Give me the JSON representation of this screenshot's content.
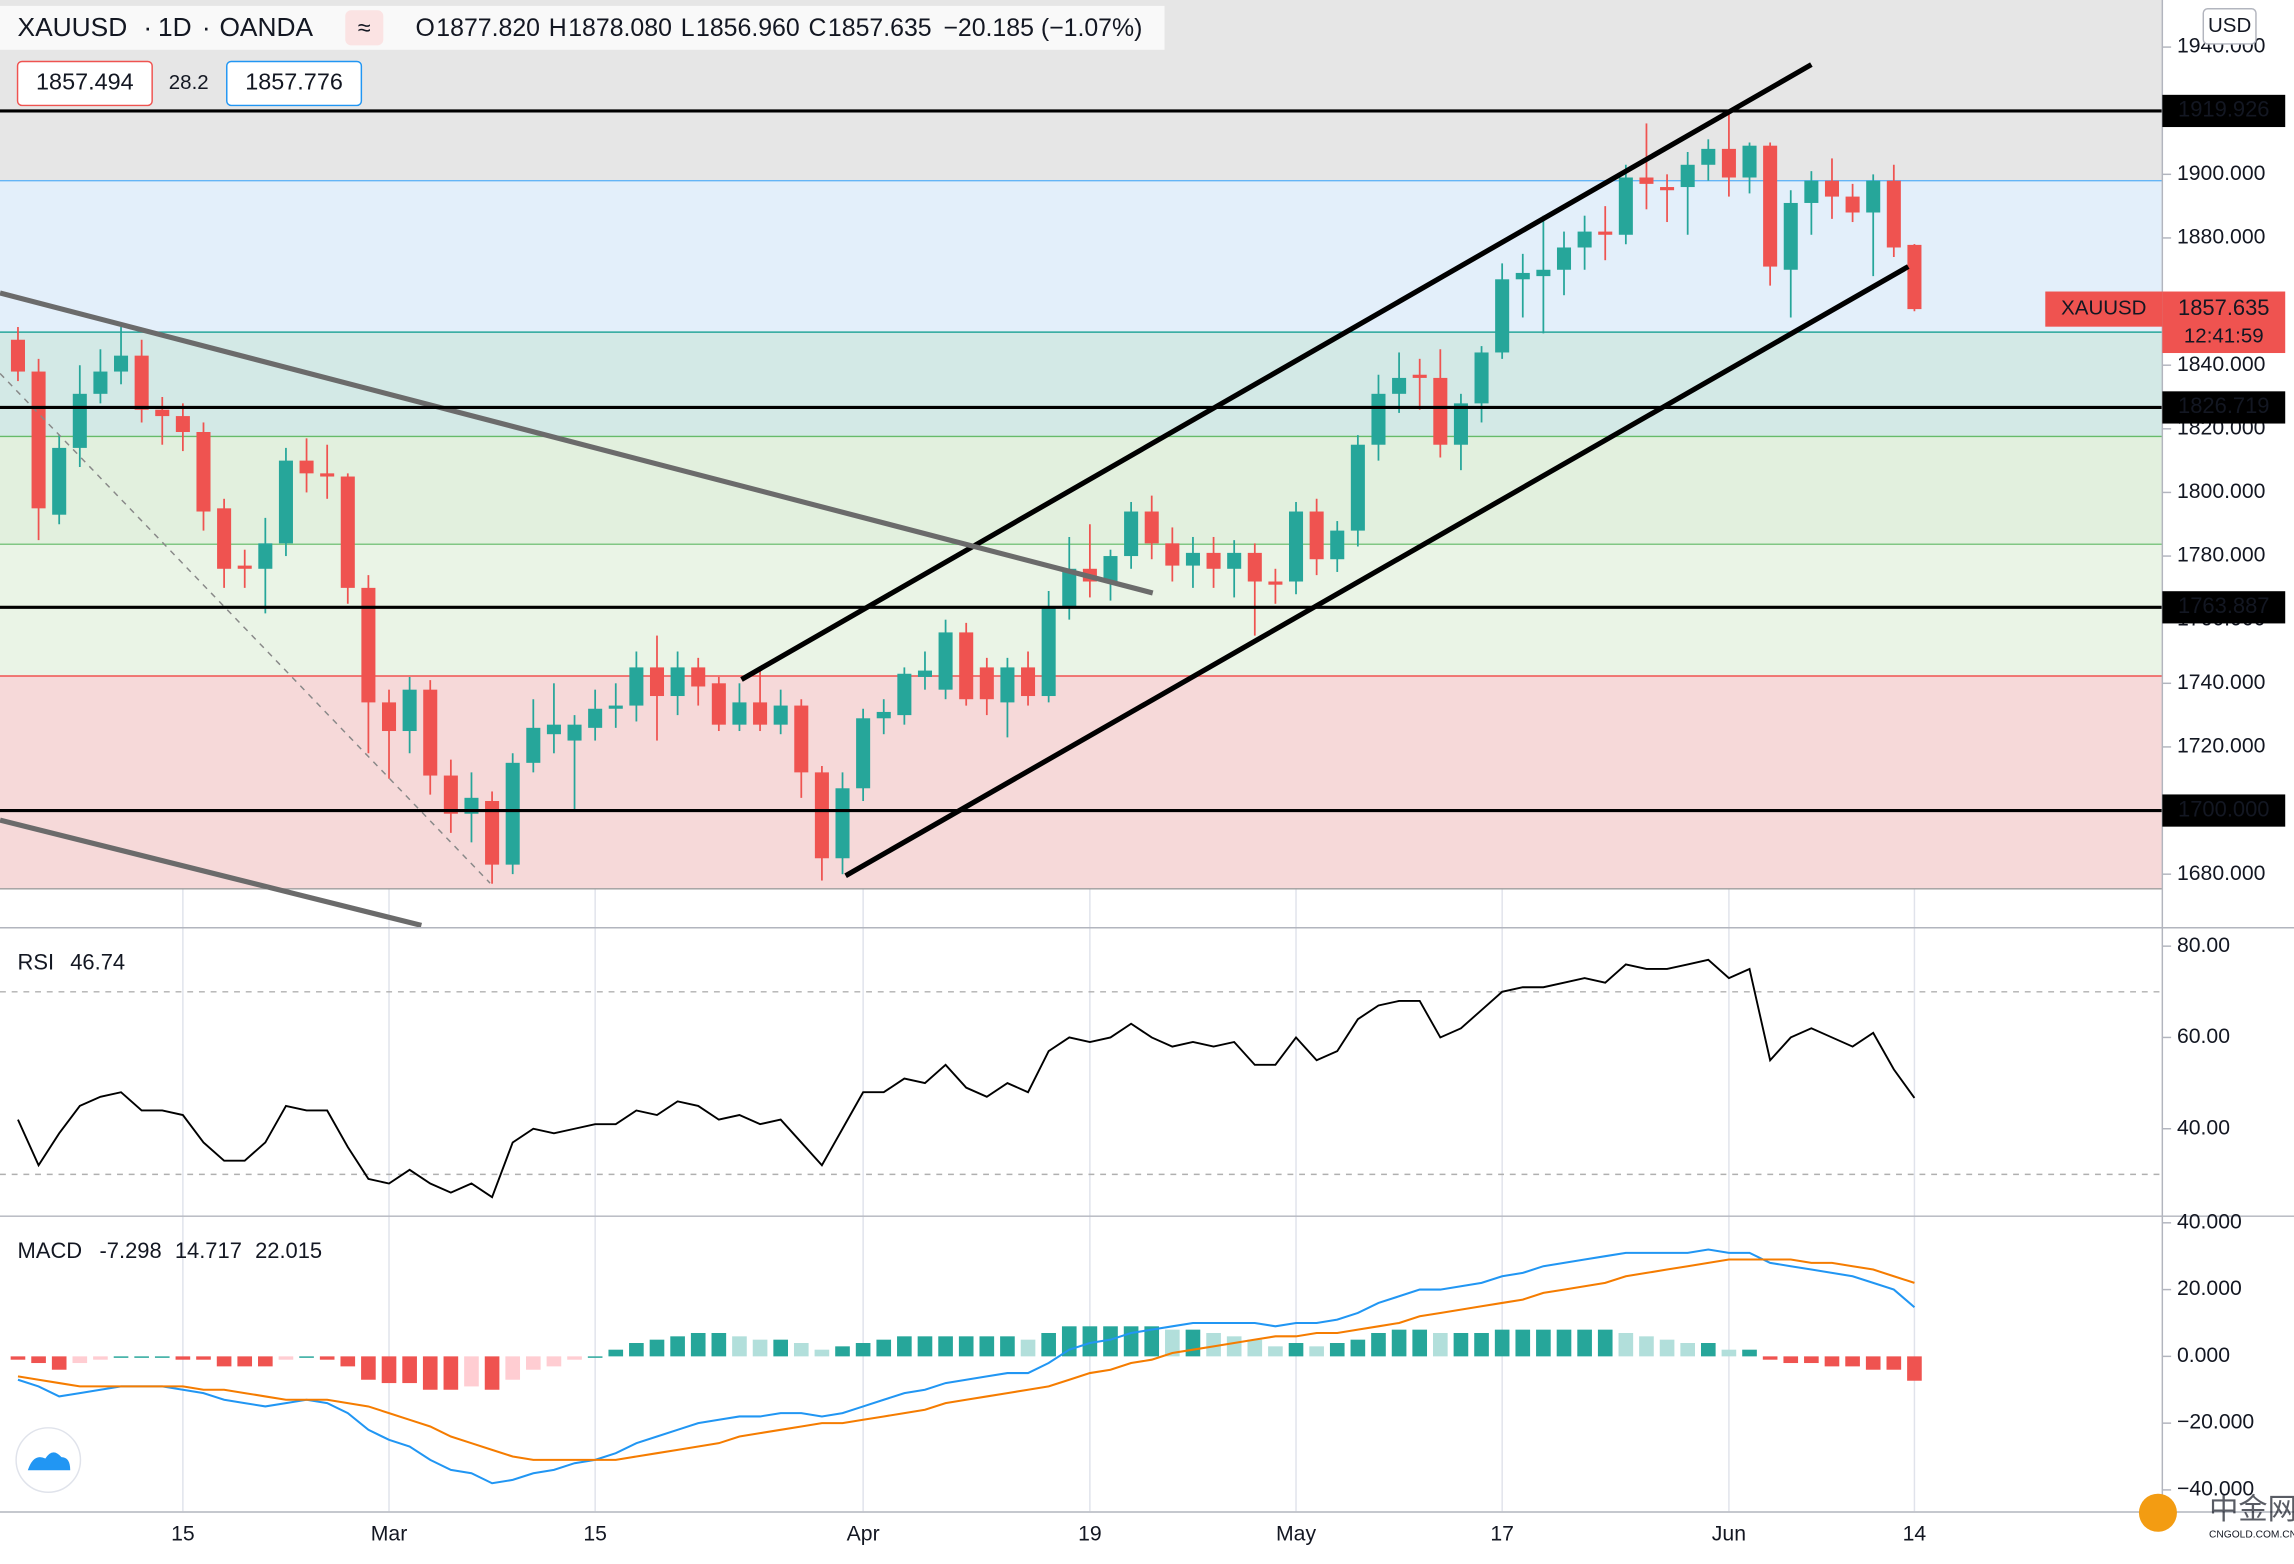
{
  "header": {
    "symbol": "XAUUSD",
    "interval": "1D",
    "exchange": "OANDA",
    "ohlc": [
      {
        "key": "O",
        "value": "1877.820"
      },
      {
        "key": "H",
        "value": "1878.080"
      },
      {
        "key": "L",
        "value": "1856.960"
      },
      {
        "key": "C",
        "value": "1857.635"
      }
    ],
    "change": "−20.185 (−1.07%)",
    "bid": "1857.494",
    "spread": "28.2",
    "ask": "1857.776",
    "currency": "USD",
    "countdown": "12:41:59",
    "watermark": "中金网",
    "watermark_sub": "CNGOLD.COM.CN"
  },
  "chart_data": [
    {
      "type": "candlestick",
      "name": "XAUUSD",
      "up_color": "#26a69a",
      "down_color": "#ef5350",
      "xticks": [
        {
          "value": 8,
          "label": "15"
        },
        {
          "value": 18,
          "label": "Mar"
        },
        {
          "value": 28,
          "label": "15"
        },
        {
          "value": 41,
          "label": "Apr"
        },
        {
          "value": 52,
          "label": "19"
        },
        {
          "value": 62,
          "label": "May"
        },
        {
          "value": 72,
          "label": "17"
        },
        {
          "value": 83,
          "label": "Jun"
        },
        {
          "value": 92,
          "label": "14"
        }
      ],
      "ylim": [
        1663.4,
        1954.8
      ],
      "yticks": [
        {
          "value": 1680,
          "label": "1680.000"
        },
        {
          "value": 1700,
          "label": "1700.000"
        },
        {
          "value": 1720,
          "label": "1720.000"
        },
        {
          "value": 1740,
          "label": "1740.000"
        },
        {
          "value": 1760,
          "label": "1760.000"
        },
        {
          "value": 1780,
          "label": "1780.000"
        },
        {
          "value": 1800,
          "label": "1800.000"
        },
        {
          "value": 1820,
          "label": "1820.000"
        },
        {
          "value": 1840,
          "label": "1840.000"
        },
        {
          "value": 1860,
          "label": "1860.000"
        },
        {
          "value": 1880,
          "label": "1880.000"
        },
        {
          "value": 1900,
          "label": "1900.000"
        },
        {
          "value": 1920,
          "label": "1920.000"
        },
        {
          "value": 1940,
          "label": "1940.000"
        }
      ],
      "open": [
        1848,
        1838,
        1793,
        1814,
        1831,
        1838,
        1843,
        1826,
        1824,
        1819,
        1795,
        1777,
        1776,
        1784,
        1810,
        1806,
        1805,
        1770,
        1734,
        1725,
        1738,
        1711,
        1699,
        1703,
        1683,
        1715,
        1724,
        1722,
        1726,
        1732,
        1733,
        1745,
        1736,
        1745,
        1740,
        1727,
        1734,
        1727,
        1733,
        1712,
        1685,
        1707,
        1729,
        1730,
        1742,
        1738,
        1756,
        1745,
        1734,
        1745,
        1736,
        1764,
        1776,
        1772,
        1780,
        1794,
        1784,
        1777,
        1781,
        1776,
        1781,
        1772,
        1772,
        1794,
        1779,
        1788,
        1815,
        1831,
        1837,
        1836,
        1815,
        1828,
        1844,
        1867,
        1868,
        1870,
        1877,
        1882,
        1881,
        1899,
        1896,
        1896,
        1903,
        1908,
        1899,
        1909,
        1870,
        1891,
        1898,
        1893,
        1888,
        1898,
        1877.82
      ],
      "high": [
        1852,
        1842,
        1818,
        1840,
        1845,
        1852,
        1848,
        1830,
        1828,
        1822,
        1798,
        1782,
        1792,
        1814,
        1817,
        1815,
        1806,
        1774,
        1738,
        1742,
        1741,
        1716,
        1712,
        1706,
        1718,
        1735,
        1740,
        1730,
        1738,
        1740,
        1750,
        1755,
        1750,
        1748,
        1742,
        1740,
        1744,
        1738,
        1735,
        1714,
        1712,
        1732,
        1735,
        1745,
        1750,
        1760,
        1759,
        1748,
        1748,
        1750,
        1769,
        1786,
        1790,
        1782,
        1797,
        1799,
        1789,
        1786,
        1786,
        1785,
        1784,
        1776,
        1797,
        1798,
        1791,
        1818,
        1837,
        1844,
        1842,
        1845,
        1831,
        1846,
        1872,
        1875,
        1887,
        1882,
        1887,
        1890,
        1903,
        1916,
        1900,
        1907,
        1911,
        1919,
        1910,
        1910,
        1895,
        1901,
        1905,
        1897,
        1900,
        1903,
        1878.08
      ],
      "low": [
        1835,
        1785,
        1790,
        1808,
        1828,
        1834,
        1822,
        1815,
        1813,
        1788,
        1770,
        1770,
        1762,
        1780,
        1800,
        1798,
        1765,
        1718,
        1710,
        1718,
        1705,
        1693,
        1690,
        1677,
        1680,
        1712,
        1718,
        1700,
        1722,
        1726,
        1728,
        1722,
        1730,
        1733,
        1725,
        1725,
        1725,
        1724,
        1704,
        1678,
        1680,
        1703,
        1724,
        1727,
        1738,
        1735,
        1733,
        1730,
        1723,
        1733,
        1734,
        1760,
        1767,
        1766,
        1776,
        1779,
        1772,
        1770,
        1770,
        1767,
        1755,
        1765,
        1768,
        1774,
        1775,
        1783,
        1810,
        1825,
        1826,
        1811,
        1807,
        1822,
        1842,
        1855,
        1850,
        1862,
        1870,
        1873,
        1878,
        1889,
        1885,
        1881,
        1898,
        1893,
        1894,
        1865,
        1855,
        1881,
        1886,
        1885,
        1868,
        1874,
        1856.96
      ],
      "close": [
        1838,
        1795,
        1814,
        1831,
        1838,
        1843,
        1826,
        1824,
        1819,
        1794,
        1776,
        1776,
        1784,
        1810,
        1806,
        1805,
        1770,
        1734,
        1725,
        1738,
        1711,
        1699,
        1704,
        1683,
        1715,
        1726,
        1727,
        1727,
        1732,
        1733,
        1745,
        1736,
        1745,
        1739,
        1727,
        1734,
        1727,
        1733,
        1712,
        1685,
        1707,
        1729,
        1731,
        1743,
        1744,
        1756,
        1735,
        1735,
        1745,
        1736,
        1764,
        1776,
        1772,
        1780,
        1794,
        1784,
        1777,
        1781,
        1776,
        1781,
        1772,
        1771,
        1794,
        1779,
        1788,
        1815,
        1831,
        1836,
        1836,
        1815,
        1828,
        1844,
        1867,
        1869,
        1870,
        1877,
        1882,
        1881,
        1899,
        1897,
        1895,
        1903,
        1908,
        1899,
        1909,
        1871,
        1891,
        1898,
        1893,
        1888,
        1898,
        1877,
        1857.635
      ],
      "top_fill": "#e6e6e6",
      "levels": [
        {
          "value": 1898.0,
          "line": "#64b5f6",
          "fill": "#e3effa"
        },
        {
          "value": 1850.4,
          "line": "#26a69a",
          "fill": "#d3e9e6"
        },
        {
          "value": 1817.6,
          "line": "#66bb6a",
          "fill": "#e2f0de"
        },
        {
          "value": 1783.7,
          "line": "#81c784",
          "fill": "#eaf4e6"
        },
        {
          "value": 1742.3,
          "line": "#ef5350",
          "fill": "#f6d9d9"
        },
        {
          "value": 1675.4,
          "line": "#9e9e9e",
          "fill": "none"
        }
      ],
      "hlines": [
        1919.926,
        1826.719,
        1763.887,
        {
          "value": 1700,
          "label": "1700.000"
        }
      ],
      "trendlines": [
        {
          "points": [
            [
              35.1,
              1741.2
            ],
            [
              87.0,
              1934.5
            ]
          ],
          "color": "#000000",
          "width": 3.5,
          "dash": false
        },
        {
          "points": [
            [
              40.15,
              1679.5
            ],
            [
              91.7,
              1871.0
            ]
          ],
          "color": "#000000",
          "width": 3.5,
          "dash": false
        },
        {
          "points": [
            [
              -0.87,
              1862.7
            ],
            [
              55.05,
              1768.4
            ]
          ],
          "color": "#6b6b6b",
          "width": 3.5,
          "dash": false
        },
        {
          "points": [
            [
              -0.87,
              1697.0
            ],
            [
              19.57,
              1663.9
            ]
          ],
          "color": "#6b6b6b",
          "width": 3.5,
          "dash": false
        },
        {
          "points": [
            [
              -0.87,
              1837.4
            ],
            [
              22.9,
              1677.2
            ]
          ],
          "color": "#888888",
          "width": 1,
          "dash": true
        }
      ]
    },
    {
      "type": "line",
      "title": "RSI",
      "color": "#000000",
      "band_color": "#b0b0b0",
      "ylim": [
        21.0,
        84.2
      ],
      "yticks": [
        {
          "value": 80,
          "label": "80.00"
        },
        {
          "value": 60,
          "label": "60.00"
        },
        {
          "value": 40,
          "label": "40.00"
        }
      ],
      "bands": [
        70,
        30
      ],
      "series": [
        {
          "name": "RSI",
          "color": "#000000",
          "values": [
            42,
            32,
            39,
            45,
            47,
            48,
            44,
            44,
            43,
            37,
            33,
            33,
            37,
            45,
            44,
            44,
            36,
            29,
            28,
            31,
            28,
            26,
            28,
            25,
            37,
            40,
            39,
            40,
            41,
            41,
            44,
            43,
            46,
            45,
            42,
            43,
            41,
            42,
            37,
            32,
            40,
            48,
            48,
            51,
            50,
            54,
            49,
            47,
            50,
            48,
            57,
            60,
            59,
            60,
            63,
            60,
            58,
            59,
            58,
            59,
            54,
            54,
            60,
            55,
            57,
            64,
            67,
            68,
            68,
            60,
            62,
            66,
            70,
            71,
            71,
            72,
            73,
            72,
            76,
            75,
            75,
            76,
            77,
            73,
            75,
            55,
            60,
            62,
            60,
            58,
            61,
            53,
            46.74
          ]
        }
      ]
    },
    {
      "type": "macd",
      "title": "MACD",
      "ylim": [
        -46.4,
        42.2
      ],
      "yticks": [
        {
          "value": 40,
          "label": "40.000"
        },
        {
          "value": 20,
          "label": "20.000"
        },
        {
          "value": 0,
          "label": "0.000"
        },
        {
          "value": -20,
          "label": "−20.000"
        },
        {
          "value": -40,
          "label": "−40.000"
        }
      ],
      "hist_colors": [
        "#26a69a",
        "#b2dfdb",
        "#ef5350",
        "#ffcdd2"
      ],
      "series": [
        {
          "name": "Histogram",
          "color": "#ef5350",
          "values": [
            -1,
            -2,
            -4,
            -2,
            -1,
            0,
            0,
            0,
            -1,
            -1,
            -3,
            -3,
            -3,
            -1,
            0,
            -1,
            -3,
            -7,
            -8,
            -8,
            -10,
            -10,
            -9,
            -10,
            -7,
            -4,
            -3,
            -1,
            0,
            2,
            4,
            5,
            6,
            7,
            7,
            6,
            5,
            5,
            4,
            2,
            3,
            4,
            5,
            6,
            6,
            6,
            6,
            6,
            6,
            5,
            7,
            9,
            9,
            9,
            9,
            9,
            8,
            8,
            7,
            6,
            5,
            3,
            4,
            3,
            4,
            5,
            7,
            8,
            8,
            7,
            7,
            7,
            8,
            8,
            8,
            8,
            8,
            8,
            7,
            6,
            5,
            4,
            4,
            2,
            2,
            -1,
            -2,
            -2,
            -3,
            -3,
            -4,
            -4,
            -7.298
          ]
        },
        {
          "name": "MACD",
          "color": "#2196f3",
          "values": [
            -7,
            -9,
            -12,
            -11,
            -10,
            -9,
            -9,
            -9,
            -10,
            -11,
            -13,
            -14,
            -15,
            -14,
            -13,
            -14,
            -17,
            -22,
            -25,
            -27,
            -31,
            -34,
            -35,
            -38,
            -37,
            -35,
            -34,
            -32,
            -31,
            -29,
            -26,
            -24,
            -22,
            -20,
            -19,
            -18,
            -18,
            -17,
            -17,
            -18,
            -17,
            -15,
            -13,
            -11,
            -10,
            -8,
            -7,
            -6,
            -5,
            -5,
            -2,
            2,
            4,
            5,
            7,
            8,
            9,
            10,
            10,
            10,
            10,
            9,
            10,
            10,
            11,
            13,
            16,
            18,
            20,
            20,
            21,
            22,
            24,
            25,
            27,
            28,
            29,
            30,
            31,
            31,
            31,
            31,
            32,
            31,
            31,
            28,
            27,
            26,
            25,
            24,
            22,
            20,
            14.717
          ]
        },
        {
          "name": "Signal",
          "color": "#f57c00",
          "values": [
            -6,
            -7,
            -8,
            -9,
            -9,
            -9,
            -9,
            -9,
            -9,
            -10,
            -10,
            -11,
            -12,
            -13,
            -13,
            -13,
            -14,
            -15,
            -17,
            -19,
            -21,
            -24,
            -26,
            -28,
            -30,
            -31,
            -31,
            -31,
            -31,
            -31,
            -30,
            -29,
            -28,
            -27,
            -26,
            -24,
            -23,
            -22,
            -21,
            -20,
            -20,
            -19,
            -18,
            -17,
            -16,
            -14,
            -13,
            -12,
            -11,
            -10,
            -9,
            -7,
            -5,
            -4,
            -2,
            -1,
            1,
            2,
            3,
            4,
            5,
            6,
            6,
            7,
            7,
            8,
            9,
            10,
            12,
            13,
            14,
            15,
            16,
            17,
            19,
            20,
            21,
            22,
            24,
            25,
            26,
            27,
            28,
            29,
            29,
            29,
            29,
            28,
            28,
            27,
            26,
            24,
            22.015
          ]
        }
      ]
    }
  ]
}
